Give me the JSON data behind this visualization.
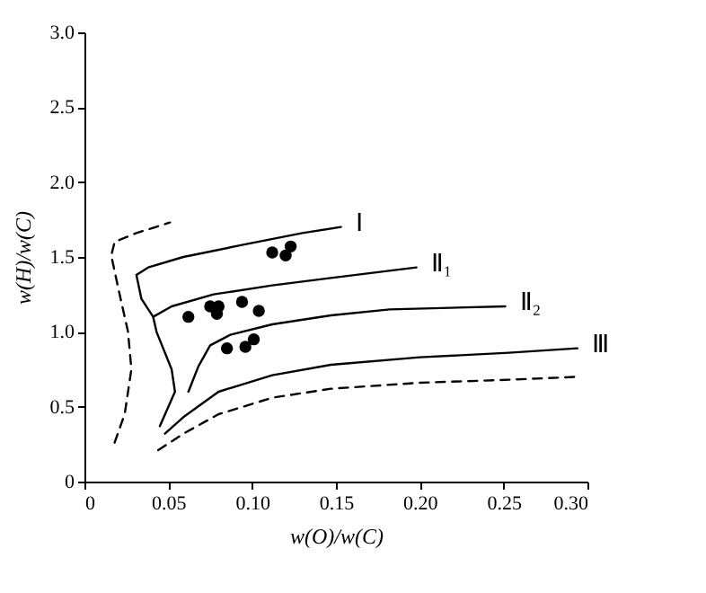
{
  "chart_data": {
    "type": "line",
    "xlabel": "w(O)/w(C)",
    "ylabel": "w(H)/w(C)",
    "xlim": [
      0,
      0.3
    ],
    "ylim": [
      0,
      3.0
    ],
    "xticks": [
      0,
      0.05,
      {
        "value": 0.1,
        "label": "0.10"
      },
      0.15,
      {
        "value": 0.2,
        "label": "0.20"
      },
      0.25,
      {
        "value": 0.3,
        "label": "0.30"
      }
    ],
    "yticks": [
      0,
      0.5,
      {
        "value": 1,
        "label": "1.0"
      },
      1.5,
      {
        "value": 2,
        "label": "2.0"
      },
      2.5,
      {
        "value": 3,
        "label": "3.0"
      }
    ],
    "grid": false,
    "legend": false,
    "series": [
      {
        "name": "Ⅰ",
        "color": "#000000",
        "line_style": "solid",
        "x": [
          0.045,
          0.054,
          0.052,
          0.043,
          0.041,
          0.034,
          0.031,
          0.038,
          0.059,
          0.094,
          0.13,
          0.153
        ],
        "values": [
          0.37,
          0.6,
          0.75,
          1.0,
          1.1,
          1.22,
          1.38,
          1.43,
          1.5,
          1.58,
          1.66,
          1.7
        ]
      },
      {
        "name": "Ⅱ₁",
        "color": "#000000",
        "line_style": "solid",
        "x": [
          0.041,
          0.052,
          0.077,
          0.112,
          0.147,
          0.198
        ],
        "values": [
          1.1,
          1.17,
          1.25,
          1.31,
          1.36,
          1.43
        ]
      },
      {
        "name": "Ⅱ₂",
        "color": "#000000",
        "line_style": "solid",
        "x": [
          0.062,
          0.068,
          0.075,
          0.087,
          0.112,
          0.147,
          0.182,
          0.251
        ],
        "values": [
          0.6,
          0.77,
          0.91,
          0.98,
          1.05,
          1.11,
          1.15,
          1.17
        ]
      },
      {
        "name": "Ⅲ",
        "color": "#000000",
        "line_style": "solid",
        "x": [
          0.048,
          0.059,
          0.08,
          0.112,
          0.147,
          0.2,
          0.253,
          0.294
        ],
        "values": [
          0.32,
          0.43,
          0.6,
          0.71,
          0.78,
          0.83,
          0.86,
          0.89
        ]
      },
      {
        "color": "#000000",
        "line_style": "dashed",
        "x": [
          0.018,
          0.024,
          0.028,
          0.026,
          0.02,
          0.016,
          0.018,
          0.031,
          0.051
        ],
        "values": [
          0.26,
          0.45,
          0.75,
          1.0,
          1.3,
          1.51,
          1.6,
          1.66,
          1.73
        ]
      },
      {
        "color": "#000000",
        "line_style": "dashed",
        "x": [
          0.044,
          0.059,
          0.08,
          0.112,
          0.147,
          0.2,
          0.253,
          0.295
        ],
        "values": [
          0.21,
          0.32,
          0.45,
          0.56,
          0.62,
          0.66,
          0.68,
          0.7
        ]
      },
      {
        "type": "scatter",
        "color": "#000000",
        "marker": "circle",
        "x": [
          0.112,
          0.12,
          0.123,
          0.062,
          0.075,
          0.08,
          0.079,
          0.094,
          0.104,
          0.085,
          0.096,
          0.101
        ],
        "values": [
          1.53,
          1.51,
          1.57,
          1.1,
          1.17,
          1.17,
          1.12,
          1.2,
          1.14,
          0.89,
          0.9,
          0.95
        ]
      }
    ]
  }
}
